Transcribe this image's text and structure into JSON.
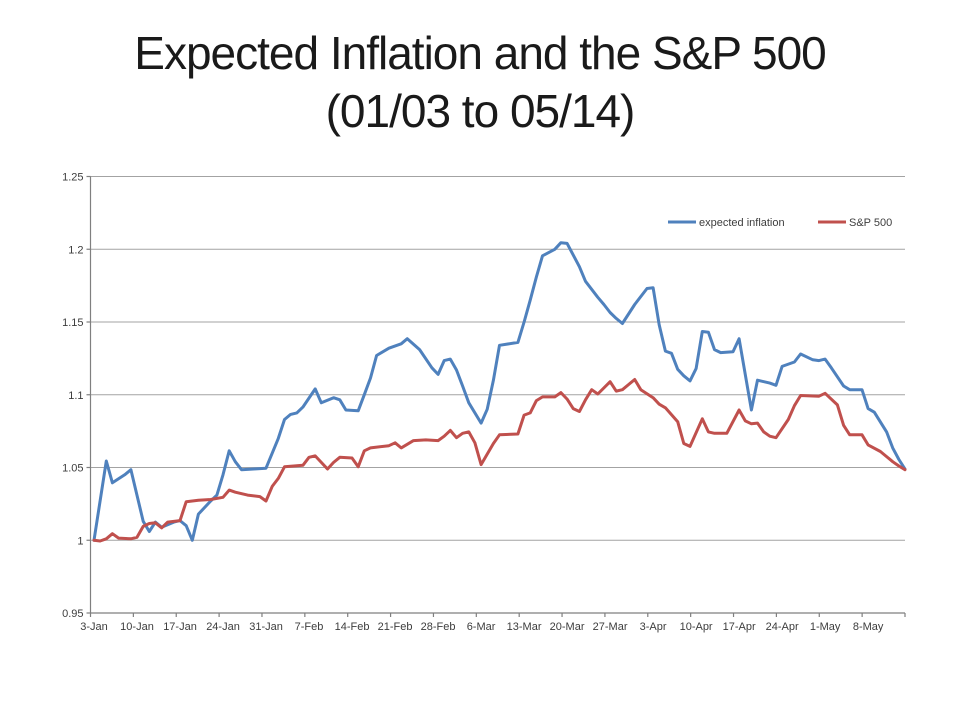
{
  "slide": {
    "title_line1": "Expected Inflation and the S&P 500",
    "title_line2": "(01/03 to 05/14)"
  },
  "colors": {
    "background": "#FFFFFF",
    "gridline": "#A3A3A3",
    "axis_line": "#7F7F7F",
    "tick_label": "#3D3D3D",
    "title": "#1A1A1A",
    "series_blue": "#4F81BD",
    "series_red": "#C0504D"
  },
  "chart_data": {
    "type": "line",
    "title": "Expected Inflation and the S&P 500 (01/03 to 05/14)",
    "grid": "horizontal",
    "legend_position": "top-right-inside",
    "x_axis": {
      "unit": "date",
      "range_days": [
        0,
        132
      ],
      "labels": [
        "3-Jan",
        "10-Jan",
        "17-Jan",
        "24-Jan",
        "31-Jan",
        "7-Feb",
        "14-Feb",
        "21-Feb",
        "28-Feb",
        "6-Mar",
        "13-Mar",
        "20-Mar",
        "27-Mar",
        "3-Apr",
        "10-Apr",
        "17-Apr",
        "24-Apr",
        "1-May",
        "8-May"
      ],
      "label_days": [
        0,
        7,
        14,
        21,
        28,
        35,
        42,
        49,
        56,
        63,
        70,
        77,
        84,
        91,
        98,
        105,
        112,
        119,
        126
      ]
    },
    "y_axis": {
      "range": [
        0.95,
        1.25
      ],
      "tick_labels": [
        "1.25",
        "1.2",
        "1.15",
        "1.1",
        "1.05",
        "1",
        "0.95"
      ],
      "tick_values": [
        1.25,
        1.2,
        1.15,
        1.1,
        1.05,
        1.0,
        0.95
      ]
    },
    "series": [
      {
        "name": "expected inflation",
        "color": "#4F81BD",
        "points": [
          [
            0,
            1.0
          ],
          [
            2,
            1.0545
          ],
          [
            3,
            1.0395
          ],
          [
            5,
            1.045
          ],
          [
            6,
            1.0485
          ],
          [
            8,
            1.013
          ],
          [
            9,
            1.006
          ],
          [
            10,
            1.0125
          ],
          [
            11,
            1.009
          ],
          [
            13,
            1.0125
          ],
          [
            14,
            1.0135
          ],
          [
            15,
            1.01
          ],
          [
            16,
            1.0
          ],
          [
            17,
            1.018
          ],
          [
            19,
            1.027
          ],
          [
            20,
            1.031
          ],
          [
            21,
            1.045
          ],
          [
            22,
            1.0615
          ],
          [
            23,
            1.054
          ],
          [
            24,
            1.0485
          ],
          [
            26,
            1.049
          ],
          [
            28,
            1.0495
          ],
          [
            30,
            1.07
          ],
          [
            31,
            1.083
          ],
          [
            32,
            1.0865
          ],
          [
            33,
            1.0875
          ],
          [
            34,
            1.0915
          ],
          [
            36,
            1.104
          ],
          [
            37,
            1.0945
          ],
          [
            39,
            1.098
          ],
          [
            40,
            1.0965
          ],
          [
            41,
            1.0895
          ],
          [
            43,
            1.089
          ],
          [
            44,
            1.1
          ],
          [
            45,
            1.1115
          ],
          [
            46,
            1.127
          ],
          [
            48,
            1.132
          ],
          [
            50,
            1.135
          ],
          [
            51,
            1.1385
          ],
          [
            53,
            1.131
          ],
          [
            55,
            1.1185
          ],
          [
            56,
            1.114
          ],
          [
            57,
            1.1235
          ],
          [
            58,
            1.1245
          ],
          [
            59,
            1.117
          ],
          [
            60,
            1.106
          ],
          [
            61,
            1.0945
          ],
          [
            63,
            1.0805
          ],
          [
            64,
            1.09
          ],
          [
            65,
            1.11
          ],
          [
            66,
            1.134
          ],
          [
            69,
            1.136
          ],
          [
            70,
            1.15
          ],
          [
            71,
            1.165
          ],
          [
            72,
            1.181
          ],
          [
            73,
            1.1955
          ],
          [
            75,
            1.2
          ],
          [
            76,
            1.2045
          ],
          [
            77,
            1.204
          ],
          [
            79,
            1.188
          ],
          [
            80,
            1.178
          ],
          [
            82,
            1.167
          ],
          [
            83,
            1.162
          ],
          [
            84,
            1.1565
          ],
          [
            85,
            1.1525
          ],
          [
            86,
            1.149
          ],
          [
            88,
            1.162
          ],
          [
            90,
            1.173
          ],
          [
            91,
            1.1735
          ],
          [
            92,
            1.148
          ],
          [
            93,
            1.13
          ],
          [
            94,
            1.1285
          ],
          [
            95,
            1.1175
          ],
          [
            96,
            1.113
          ],
          [
            97,
            1.1095
          ],
          [
            98,
            1.118
          ],
          [
            99,
            1.1435
          ],
          [
            100,
            1.143
          ],
          [
            101,
            1.131
          ],
          [
            102,
            1.129
          ],
          [
            104,
            1.1295
          ],
          [
            105,
            1.1385
          ],
          [
            107,
            1.0895
          ],
          [
            108,
            1.11
          ],
          [
            110,
            1.108
          ],
          [
            111,
            1.1065
          ],
          [
            112,
            1.1195
          ],
          [
            114,
            1.1225
          ],
          [
            115,
            1.128
          ],
          [
            117,
            1.124
          ],
          [
            118,
            1.1235
          ],
          [
            119,
            1.1245
          ],
          [
            120,
            1.1185
          ],
          [
            122,
            1.106
          ],
          [
            123,
            1.1035
          ],
          [
            125,
            1.1035
          ],
          [
            126,
            1.0905
          ],
          [
            127,
            1.088
          ],
          [
            129,
            1.0745
          ],
          [
            130,
            1.0635
          ],
          [
            131,
            1.0555
          ],
          [
            132,
            1.049
          ]
        ]
      },
      {
        "name": "S&P 500",
        "color": "#C0504D",
        "points": [
          [
            0,
            1.0
          ],
          [
            1,
            0.9995
          ],
          [
            2,
            1.001
          ],
          [
            3,
            1.0045
          ],
          [
            4,
            1.0015
          ],
          [
            6,
            1.001
          ],
          [
            7,
            1.002
          ],
          [
            8,
            1.0095
          ],
          [
            9,
            1.0115
          ],
          [
            10,
            1.012
          ],
          [
            11,
            1.0085
          ],
          [
            12,
            1.0125
          ],
          [
            14,
            1.0135
          ],
          [
            15,
            1.0265
          ],
          [
            17,
            1.0275
          ],
          [
            19,
            1.028
          ],
          [
            21,
            1.0295
          ],
          [
            22,
            1.0345
          ],
          [
            23,
            1.033
          ],
          [
            25,
            1.031
          ],
          [
            27,
            1.03
          ],
          [
            28,
            1.027
          ],
          [
            29,
            1.037
          ],
          [
            30,
            1.0425
          ],
          [
            31,
            1.0505
          ],
          [
            34,
            1.0515
          ],
          [
            35,
            1.057
          ],
          [
            36,
            1.058
          ],
          [
            37,
            1.0535
          ],
          [
            38,
            1.049
          ],
          [
            39,
            1.0535
          ],
          [
            40,
            1.057
          ],
          [
            42,
            1.0565
          ],
          [
            43,
            1.0505
          ],
          [
            44,
            1.0615
          ],
          [
            45,
            1.0635
          ],
          [
            48,
            1.065
          ],
          [
            49,
            1.067
          ],
          [
            50,
            1.0635
          ],
          [
            52,
            1.0685
          ],
          [
            54,
            1.069
          ],
          [
            56,
            1.0685
          ],
          [
            57,
            1.0715
          ],
          [
            58,
            1.0755
          ],
          [
            59,
            1.0705
          ],
          [
            60,
            1.0735
          ],
          [
            61,
            1.0745
          ],
          [
            62,
            1.067
          ],
          [
            63,
            1.052
          ],
          [
            65,
            1.0665
          ],
          [
            66,
            1.0725
          ],
          [
            69,
            1.073
          ],
          [
            70,
            1.086
          ],
          [
            71,
            1.0875
          ],
          [
            72,
            1.096
          ],
          [
            73,
            1.0985
          ],
          [
            75,
            1.0985
          ],
          [
            76,
            1.1015
          ],
          [
            77,
            1.097
          ],
          [
            78,
            1.0905
          ],
          [
            79,
            1.0885
          ],
          [
            80,
            1.0965
          ],
          [
            81,
            1.1035
          ],
          [
            82,
            1.1005
          ],
          [
            84,
            1.109
          ],
          [
            85,
            1.1025
          ],
          [
            86,
            1.1035
          ],
          [
            87,
            1.107
          ],
          [
            88,
            1.1105
          ],
          [
            89,
            1.1035
          ],
          [
            91,
            1.098
          ],
          [
            92,
            1.0935
          ],
          [
            93,
            1.091
          ],
          [
            95,
            1.0815
          ],
          [
            96,
            1.0665
          ],
          [
            97,
            1.0645
          ],
          [
            99,
            1.0835
          ],
          [
            100,
            1.0745
          ],
          [
            101,
            1.0735
          ],
          [
            103,
            1.0735
          ],
          [
            105,
            1.0895
          ],
          [
            106,
            1.082
          ],
          [
            107,
            1.08
          ],
          [
            108,
            1.0805
          ],
          [
            109,
            1.0745
          ],
          [
            110,
            1.0715
          ],
          [
            111,
            1.0705
          ],
          [
            113,
            1.083
          ],
          [
            114,
            1.0925
          ],
          [
            115,
            1.0995
          ],
          [
            118,
            1.099
          ],
          [
            119,
            1.101
          ],
          [
            121,
            1.093
          ],
          [
            122,
            1.079
          ],
          [
            123,
            1.0725
          ],
          [
            125,
            1.0725
          ],
          [
            126,
            1.0655
          ],
          [
            128,
            1.061
          ],
          [
            129,
            1.0575
          ],
          [
            130,
            1.054
          ],
          [
            131,
            1.051
          ],
          [
            132,
            1.0485
          ]
        ]
      }
    ]
  }
}
